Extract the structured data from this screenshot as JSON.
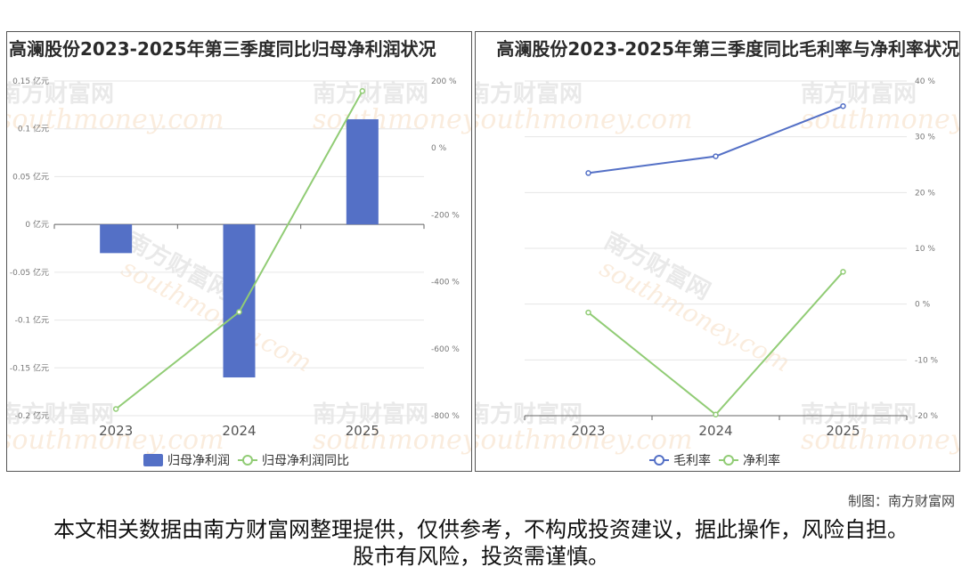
{
  "chart_data": [
    {
      "type": "bar",
      "title": "高澜股份2023-2025年第三季度同比归母净利润状况",
      "categories": [
        "2023",
        "2024",
        "2025"
      ],
      "series": [
        {
          "name": "归母净利润",
          "type": "bar",
          "axis": "left",
          "values": [
            -0.03,
            -0.16,
            0.11
          ],
          "color": "#5470c6"
        },
        {
          "name": "归母净利润同比",
          "type": "line",
          "axis": "right",
          "values": [
            -780,
            -490,
            170
          ],
          "color": "#91cc75"
        }
      ],
      "ylim_left": [
        -0.2,
        0.15
      ],
      "yticks_left": [
        "0.15 亿元",
        "0.1 亿元",
        "0.05 亿元",
        "0 亿元",
        "-0.05 亿元",
        "-0.1 亿元",
        "-0.15 亿元",
        "-0.2 亿元"
      ],
      "ylim_right": [
        -800,
        200
      ],
      "yticks_right": [
        "200 %",
        "0 %",
        "-200 %",
        "-400 %",
        "-600 %",
        "-800 %"
      ],
      "legend": [
        "归母净利润",
        "归母净利润同比"
      ],
      "legend_position": "bottom",
      "grid": true
    },
    {
      "type": "line",
      "title": "高澜股份2023-2025年第三季度同比毛利率与净利率状况",
      "categories": [
        "2023",
        "2024",
        "2025"
      ],
      "series": [
        {
          "name": "毛利率",
          "values": [
            23.5,
            26.5,
            35.5
          ],
          "color": "#5470c6"
        },
        {
          "name": "净利率",
          "values": [
            -1.5,
            -19.8,
            5.8
          ],
          "color": "#91cc75"
        }
      ],
      "ylim_right": [
        -20,
        40
      ],
      "yticks_right": [
        "40 %",
        "30 %",
        "20 %",
        "10 %",
        "0 %",
        "-10 %",
        "-20 %"
      ],
      "legend": [
        "毛利率",
        "净利率"
      ],
      "legend_position": "bottom",
      "grid": true
    }
  ],
  "watermark": {
    "cn": "南方财富网",
    "en": "southmoney.com"
  },
  "credit": "制图：南方财富网",
  "disclaimer": "本文相关数据由南方财富网整理提供，仅供参考，不构成投资建议，据此操作，风险自担。股市有风险，投资需谨慎。"
}
